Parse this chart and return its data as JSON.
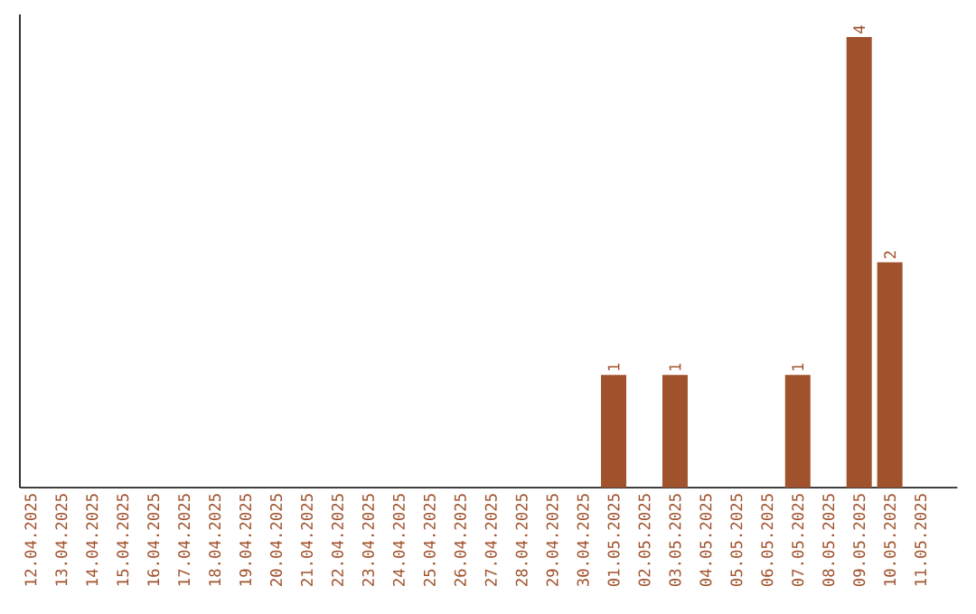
{
  "chart_data": {
    "type": "bar",
    "categories": [
      "12.04.2025",
      "13.04.2025",
      "14.04.2025",
      "15.04.2025",
      "16.04.2025",
      "17.04.2025",
      "18.04.2025",
      "19.04.2025",
      "20.04.2025",
      "21.04.2025",
      "22.04.2025",
      "23.04.2025",
      "24.04.2025",
      "25.04.2025",
      "26.04.2025",
      "27.04.2025",
      "28.04.2025",
      "29.04.2025",
      "30.04.2025",
      "01.05.2025",
      "02.05.2025",
      "03.05.2025",
      "04.05.2025",
      "05.05.2025",
      "06.05.2025",
      "07.05.2025",
      "08.05.2025",
      "09.05.2025",
      "10.05.2025",
      "11.05.2025"
    ],
    "values": [
      null,
      null,
      null,
      null,
      null,
      null,
      null,
      null,
      null,
      null,
      null,
      null,
      null,
      null,
      null,
      null,
      null,
      null,
      null,
      1,
      null,
      1,
      null,
      null,
      null,
      1,
      null,
      4,
      2,
      null
    ],
    "data_labels": true,
    "color": "#a0522d",
    "tick_labels": "x"
  }
}
